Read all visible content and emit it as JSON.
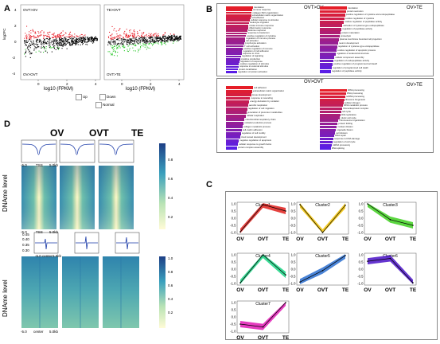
{
  "panels": {
    "A": "A",
    "B": "B",
    "C": "C",
    "D": "D"
  },
  "panelA": {
    "plot1": {
      "top_label": "OVT>OV",
      "bottom_label": "OV>OVT",
      "xlabel": "log10 (FPKM)",
      "ylabel": "log2FC",
      "xticks": [
        "0",
        "2",
        "4"
      ],
      "yticks": [
        "4",
        "2",
        "0",
        "-2",
        "-4"
      ]
    },
    "plot2": {
      "top_label": "TE>OVT",
      "bottom_label": "OVT>TE",
      "xlabel": "log10 (FPKM)",
      "xticks": [
        "0",
        "2",
        "4"
      ]
    },
    "legend": {
      "up": "Up",
      "down": "Down",
      "normal": "Normal"
    },
    "colors": {
      "up": "#e8202a",
      "down": "#2ec82e",
      "normal": "#000000"
    }
  },
  "panelB": {
    "box1": {
      "left_title": "OVT>OV",
      "right_title": "OV>TE",
      "left_terms": [
        "translation",
        "immune response",
        "collagen fibril organization",
        "extracellular matrix organization",
        "cell adhesion",
        "cellular response to stimulus",
        "leukocyte migration",
        "innate immune response",
        "inflammatory response",
        "defense response",
        "response to bacterium",
        "positive regulation of cytokine",
        "regulation of immune process",
        "cell activation",
        "lymphocyte activation",
        "T cell activation",
        "positive regulation of immune",
        "regulation of cell adhesion",
        "response to virus",
        "regulation of signaling",
        "cytokine production",
        "regulation of response",
        "positive regulation of stimulus",
        "response to external stimulus",
        "protein localization",
        "regulation of protein activation"
      ],
      "right_terms": [
        "translation",
        "protein secretion",
        "positive regulation of cytokine and endopeptidase",
        "positive regulation of cytokine",
        "positive regulation of peptidase activity",
        "activation of cysteine-type endopeptidase",
        "regulation of peptidase activity",
        "protein maturation",
        "proteolysis",
        "plasma membrane bounded cell projection",
        "neuron development",
        "regulation of cysteine-type endopeptidase",
        "positive regulation of apoptotic process",
        "regulation of anatomical structure",
        "cellular component assembly",
        "regulation of endopeptidase activity",
        "positive regulation of programmed cell death",
        "regulation of programmed cell death",
        "regulation of peptidase activity"
      ]
    },
    "box2": {
      "left_title": "OV>OVT",
      "right_title": "OV>TE",
      "left_terms": [
        "cell adhesion",
        "extracellular matrix organization",
        "tissue development",
        "response to wounding",
        "energy derivation by oxidation",
        "aerobic respiration",
        "regulation of cell migration",
        "generation of precursor metabolites",
        "cellular respiration",
        "mitochondrial respiratory chain",
        "oxidation-reduction process",
        "collagen metabolic process",
        "cell-matrix adhesion",
        "regulation of cell motility",
        "blood vessel development",
        "negative regulation of apoptosis",
        "cellular response to growth factor",
        "protein complex assembly"
      ],
      "right_terms": [
        "tRNA processing",
        "RNA processing",
        "ncRNA processing",
        "ribosome biogenesis",
        "cellular nitrogen",
        "rRNA metabolic process",
        "ribonucleoprotein complex",
        "cell cycle",
        "DNA replication",
        "mitotic cell cycle",
        "chromosome organization",
        "protein folding",
        "nuclear division",
        "organelle fission",
        "cell division",
        "DNA repair",
        "response to DNA damage",
        "regulation of cell cycle",
        "mRNA processing",
        "RNA splicing"
      ]
    }
  },
  "panelD": {
    "columns": [
      "OV",
      "OVT",
      "TE"
    ],
    "ylabel": "DNAme level",
    "tss_ticks": [
      "-5.0",
      "TSS",
      "5.0kb"
    ],
    "center_ticks": [
      "-5.0",
      "center",
      "5.0kb"
    ],
    "profile2_yticks": [
      "0.45",
      "0.40",
      "0.35",
      "0.30"
    ],
    "colorbar1": [
      "0.8",
      "0.6",
      "0.4",
      "0.2"
    ],
    "colorbar2": [
      "1.0",
      "0.8",
      "0.6",
      "0.4",
      "0.2"
    ]
  },
  "panelC": {
    "xlabels": [
      "OV",
      "OVT",
      "TE"
    ],
    "yticks": [
      "1.0",
      "0.5",
      "0.0",
      "-0.5",
      "-1.0"
    ],
    "clusters": [
      {
        "name": "Cluster1",
        "color": "#e0201c",
        "values": [
          -0.95,
          0.95,
          0.5
        ]
      },
      {
        "name": "Cluster2",
        "color": "#f2c200",
        "values": [
          0.95,
          -1.0,
          0.9
        ]
      },
      {
        "name": "Cluster3",
        "color": "#3ecf1e",
        "values": [
          1.0,
          -0.1,
          -0.5
        ]
      },
      {
        "name": "Cluster4",
        "color": "#18d482",
        "values": [
          -0.95,
          1.0,
          -0.4
        ]
      },
      {
        "name": "Cluster5",
        "color": "#2a6fd0",
        "values": [
          -0.9,
          -0.1,
          0.95
        ]
      },
      {
        "name": "Cluster6",
        "color": "#4a12c8",
        "values": [
          0.55,
          0.75,
          -0.95
        ]
      },
      {
        "name": "Cluster7",
        "color": "#e01ab4",
        "values": [
          -0.5,
          -0.7,
          1.0
        ]
      }
    ]
  }
}
